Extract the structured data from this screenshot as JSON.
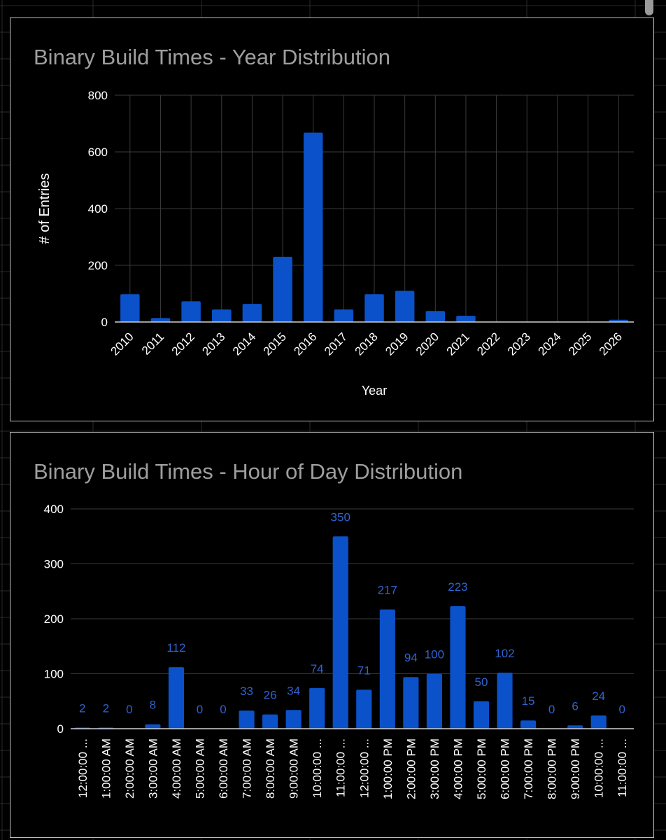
{
  "colors": {
    "bar": "#0b51c9",
    "label": "#2f63cf",
    "grid": "#3a3a3a",
    "axis": "#cfcfcf",
    "tick": "#ffffff",
    "title": "#9e9e9e",
    "background": "#000000"
  },
  "chart_data": [
    {
      "type": "bar",
      "title": "Binary Build Times - Year Distribution",
      "xlabel": "Year",
      "ylabel": "# of Entries",
      "categories": [
        "2010",
        "2011",
        "2012",
        "2013",
        "2014",
        "2015",
        "2016",
        "2017",
        "2018",
        "2019",
        "2020",
        "2021",
        "2022",
        "2023",
        "2024",
        "2025",
        "2026"
      ],
      "values": [
        98,
        14,
        73,
        44,
        64,
        230,
        668,
        44,
        98,
        110,
        39,
        22,
        0,
        0,
        0,
        0,
        8
      ],
      "ylim": [
        0,
        800
      ],
      "yticks": [
        0,
        200,
        400,
        600,
        800
      ],
      "grid": true,
      "data_labels": false
    },
    {
      "type": "bar",
      "title": "Binary Build Times - Hour of Day Distribution",
      "xlabel": "",
      "ylabel": "",
      "categories": [
        "12:00:00 ...",
        "1:00:00 AM",
        "2:00:00 AM",
        "3:00:00 AM",
        "4:00:00 AM",
        "5:00:00 AM",
        "6:00:00 AM",
        "7:00:00 AM",
        "8:00:00 AM",
        "9:00:00 AM",
        "10:00:00 ...",
        "11:00:00 ...",
        "12:00:00 ...",
        "1:00:00 PM",
        "2:00:00 PM",
        "3:00:00 PM",
        "4:00:00 PM",
        "5:00:00 PM",
        "6:00:00 PM",
        "7:00:00 PM",
        "8:00:00 PM",
        "9:00:00 PM",
        "10:00:00 ...",
        "11:00:00 ..."
      ],
      "values": [
        2,
        2,
        0,
        8,
        112,
        0,
        0,
        33,
        26,
        34,
        74,
        350,
        71,
        217,
        94,
        100,
        223,
        50,
        102,
        15,
        0,
        6,
        24,
        0
      ],
      "ylim": [
        0,
        400
      ],
      "yticks": [
        0,
        100,
        200,
        300,
        400
      ],
      "grid": true,
      "data_labels": true
    }
  ]
}
